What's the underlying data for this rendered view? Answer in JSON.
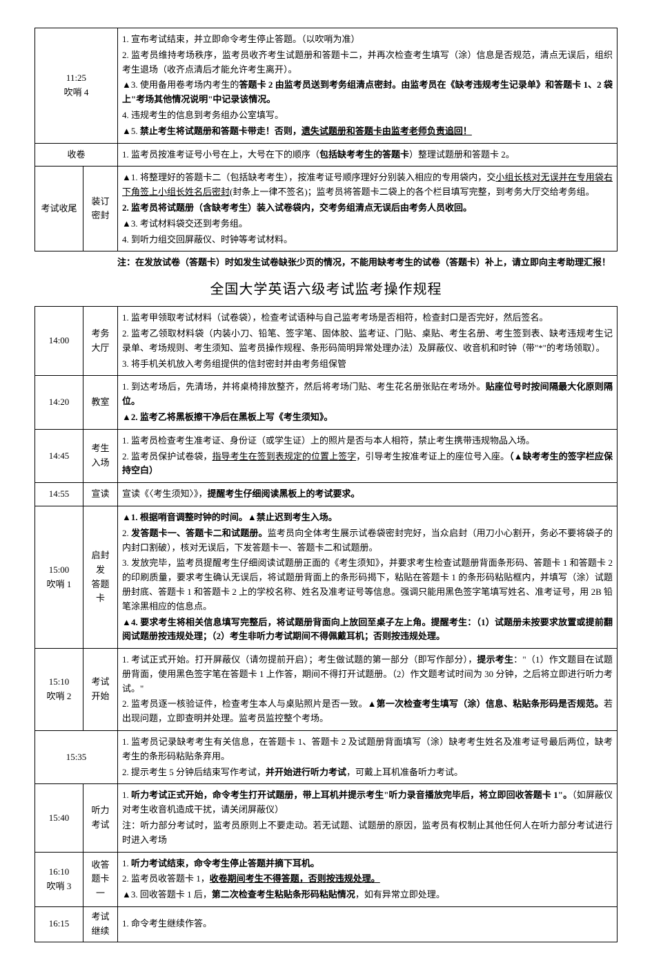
{
  "section1": {
    "rows": [
      {
        "time": "11:25",
        "time_sub": "吹哨 4",
        "label_merged": true,
        "items": [
          {
            "text": "1. 宣布考试结束，并立即命令考生停止答题。（以吹哨为准）"
          },
          {
            "html": "2. 监考员维持考场秩序，监考员收齐考生试题册和答题卡二，并再次检查考生填写（涂）信息是否规范，清点无误后，组织考生退场（收齐点清后才能允许考生离开）。"
          },
          {
            "html": "<span class='tri'></span>3. 使用备用卷考场内考生的<span class='b'>答题卡 2 由监考员送到考务组清点密封。由监考员在《缺考违规考生记录单》和答题卡 1、2 袋上\"考场其他情况说明\"中记录该情况。</span>"
          },
          {
            "text": "4. 违规考生的信息到考务组办公室填写。"
          },
          {
            "html": "<span class='tri'></span>5. <span class='b'>禁止考生将试题册和答题卡带走！否则，<span class='u'>遗失试题册和答题卡由监考老师负责追回！</span></span>"
          }
        ]
      },
      {
        "time_span_label": "收卷",
        "items": [
          {
            "html": "1. 监考员按准考证号小号在上，大号在下的顺序（<span class='b'>包括缺考考生的答题卡</span>）整理试题册和答题卡 2。"
          }
        ]
      },
      {
        "time": "考试收尾",
        "label": "装订\n密封",
        "items": [
          {
            "html": "<span class='tri'></span>1. 将整理好的答题卡二（包括缺考考生），按准考证号顺序理好分别装入相应的专用袋内，交<span class='u'>小组长核对无误并在专用袋右下角签上小组长姓名后密封</span>(封条上一律不签名)；监考员将答题卡二袋上的各个栏目填写完整，到考务大厅交给考务组。"
          },
          {
            "html": "<span class='b'>2. 监考员将试题册（含缺考考生）装入试卷袋内，交考务组清点无误后由考务人员收回。</span>"
          },
          {
            "html": "<span class='tri'></span>3. 考试材料袋交还到考务组。"
          },
          {
            "text": "4. 到听力组交回屏蔽仪、时钟等考试材料。"
          }
        ]
      }
    ]
  },
  "mid_note": "注：在发放试卷（答题卡）时如发生试卷缺张少页的情况，不能用缺考考生的试卷（答题卡）补上，请立即向主考助理汇报！",
  "title2": "全国大学英语六级考试监考操作规程",
  "section2": {
    "rows": [
      {
        "time": "14:00",
        "label": "考务\n大厅",
        "items": [
          {
            "text": "1. 监考甲领取考试材料（试卷袋），检查考试语种与自己监考考场是否相符，检查封口是否完好，然后签名。"
          },
          {
            "text": "2. 监考乙领取材料袋（内装小刀、铅笔、签字笔、固体胶、监考证、门贴、桌贴、考生名册、考生签到表、缺考违规考生记录单、考场规则、考生须知、监考员操作规程、条形码简明异常处理办法）及屏蔽仪、收音机和时钟（带\"*\"的考场领取）。"
          },
          {
            "text": "3. 将手机关机放入考务组提供的信封密封并由考务组保管"
          }
        ]
      },
      {
        "time": "14:20",
        "label": "教室",
        "items": [
          {
            "html": "1. 到达考场后，先清场，并将桌椅排放整齐，然后将考场门贴、考生花名册张贴在考场外。<span class='b'>贴座位号时按间隔最大化原则隔位。</span>"
          },
          {
            "html": "<span class='tri'></span><span class='b'>2. 监考乙将黑板擦干净后在黑板上写《考生须知》。</span>"
          }
        ]
      },
      {
        "time": "14:45",
        "label": "考生\n入场",
        "items": [
          {
            "text": "1. 监考员检查考生准考证、身份证（或学生证）上的照片是否与本人相符，禁止考生携带违规物品入场。"
          },
          {
            "html": "2. 监考员保护试卷袋，<span class='u'>指导考生在签到表规定的位置上签字</span>，引导考生按准考证上的座位号入座。<span class='b'>（▲缺考考生的签字栏应保持空白）</span>"
          }
        ]
      },
      {
        "time": "14:55",
        "label": "宣读",
        "items": [
          {
            "html": "宣读《〈考生须知〉》，<span class='b'>提醒考生仔细阅读黑板上的考试要求。</span>"
          }
        ]
      },
      {
        "time": "15:00",
        "time_sub": "吹哨 1",
        "label": "启封发\n答题卡",
        "items": [
          {
            "html": "<span class='tri'></span><span class='b'>1. 根据哨音调整时钟的时间。▲禁止迟到考生入场。</span>"
          },
          {
            "html": "2. <span class='b'>发答题卡一、答题卡二和试题册。</span>监考员向全体考生展示试卷袋密封完好，当众启封（用刀小心割开，务必不要将袋子的内封口割破），核对无误后，下发答题卡一、答题卡二和试题册。"
          },
          {
            "html": "3. 发放完毕，监考员提醒考生仔细阅读试题册正面的《考生须知》，并要求考生检查试题册背面条形码、答题卡 1 和答题卡 2 的印刷质量，要求考生确认无误后，将试题册背面上的条形码揭下，粘贴在答题卡 1 的条形码粘贴框内，并填写（涂）试题册封底、答题卡 1 和答题卡 2 上的学校名称、姓名及准考证号等信息。强调只能用黑色签字笔填写姓名、准考证号，用 2B 铅笔涂黑相应的信息点。"
          },
          {
            "html": "<span class='tri'></span><span class='b'>4. 要求考生将相关信息填写完整后，将试题册背面向上放回至桌子左上角。提醒考生：（1）试题册未按要求放置或提前翻阅试题册按违规处理；（2）考生非听力考试期间不得佩戴耳机；否则按违规处理。</span>"
          }
        ]
      },
      {
        "time": "15:10",
        "time_sub": "吹哨 2",
        "label": "考试\n开始",
        "items": [
          {
            "html": "1. 考试正式开始。打开屏蔽仪（请勿提前开启）；考生做试题的第一部分（即写作部分），<span class='b'>提示考生</span>：\"（1）作文题目在试题册背面，使用黑色签字笔在答题卡 1 上作答，期间不得打开试题册。（2）作文题考试时间为 30 分钟，之后将立即进行听力考试。\""
          },
          {
            "html": "2. 监考员逐一核验证件，检查考生本人与桌贴照片是否一致。<span class='b'>▲第一次检查考生填写（涂）信息、粘贴条形码是否规范。</span>若出现问题，立即查明并处理。监考员监控整个考场。"
          }
        ]
      },
      {
        "time_span": "15:35",
        "items": [
          {
            "text": "1. 监考员记录缺考考生有关信息，在答题卡 1、答题卡 2 及试题册背面填写（涂）缺考考生姓名及准考证号最后两位，缺考考生的条形码粘贴条弃用。"
          },
          {
            "html": "2. 提示考生 5 分钟后结束写作考试，<span class='b'>并开始进行听力考试</span>，可戴上耳机准备听力考试。"
          }
        ]
      },
      {
        "time": "15:40",
        "label": "听力\n考试",
        "items": [
          {
            "html": "1. <span class='b'>听力考试正式开始，命令考生打开试题册，带上耳机并提示考生\"听力录音播放完毕后，将立即回收答题卡 1\"。</span>（如屏蔽仪对考生收音机造成干扰，请关闭屏蔽仪）"
          },
          {
            "html": "注：听力部分考试时，监考员原则上不要走动。若无试题、试题册的原因，监考员有权制止其他任何人在听力部分考试进行时进入考场"
          }
        ]
      },
      {
        "time": "16:10",
        "time_sub": "吹哨 3",
        "label": "收答\n题卡一",
        "items": [
          {
            "html": "1. <span class='b'>听力考试结束，命令考生停止答题并摘下耳机。</span>"
          },
          {
            "html": "2. 监考员收答题卡 1，<span class='b u'>收卷期间考生不得答题，否则按违规处理。</span>"
          },
          {
            "html": "<span class='tri'></span>3. 回收答题卡 1 后，<span class='b'>第二次检查考生粘贴条形码粘贴情况</span>，如有异常立即处理。"
          }
        ]
      },
      {
        "time": "16:15",
        "label": "考试\n继续",
        "items": [
          {
            "text": "1. 命令考生继续作答。"
          }
        ]
      }
    ]
  }
}
